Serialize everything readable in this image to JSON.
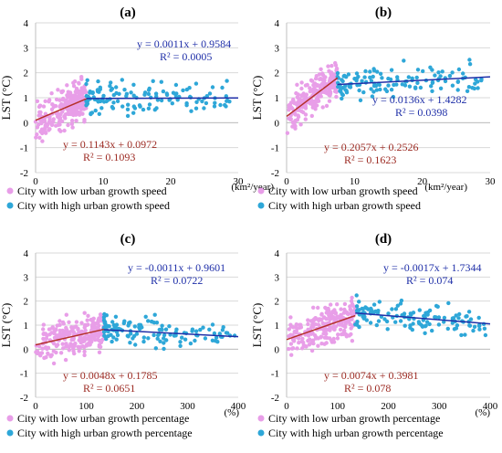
{
  "figure": {
    "panel_colors": {
      "low": "#e89ee8",
      "high": "#2ea7d8",
      "low_line": "#b5302a",
      "high_line": "#1f2fa8",
      "eq_low_text": "#9c2a22",
      "eq_high_text": "#1f2fa8"
    }
  },
  "chart_data": [
    {
      "id": "a",
      "type": "scatter",
      "title": "(a)",
      "ylabel": "LST (°C)",
      "xlabel": "",
      "x_unit": "(km²/year)",
      "xlim": [
        0,
        30
      ],
      "ylim": [
        -2,
        4
      ],
      "xticks": [
        "0",
        "10",
        "20",
        "30"
      ],
      "yticks": [
        "-2",
        "-1",
        "0",
        "1",
        "2",
        "3",
        "4"
      ],
      "series": [
        {
          "name": "City with low urban growth speed",
          "group": "low",
          "x_range": [
            0,
            7.5
          ],
          "y_range": [
            -1.0,
            2.0
          ],
          "n": 230,
          "trend": [
            0.1143,
            0.0972
          ]
        },
        {
          "name": "City with high urban growth speed",
          "group": "high",
          "x_range": [
            7.5,
            29
          ],
          "y_range": [
            -0.6,
            2.0
          ],
          "n": 130,
          "trend": [
            0.0011,
            0.9584
          ]
        }
      ],
      "equations": {
        "high": {
          "eq": "y = 0.0011x + 0.9584",
          "r2": "R² = 0.0005"
        },
        "low": {
          "eq": "y = 0.1143x + 0.0972",
          "r2": "R² = 0.1093"
        }
      }
    },
    {
      "id": "b",
      "type": "scatter",
      "title": "(b)",
      "ylabel": "LST (°C)",
      "xlabel": "",
      "x_unit": "(km²/year)",
      "xlim": [
        0,
        30
      ],
      "ylim": [
        -2,
        4
      ],
      "xticks": [
        "0",
        "10",
        "20",
        "30"
      ],
      "yticks": [
        "-2",
        "-1",
        "0",
        "1",
        "2",
        "3",
        "4"
      ],
      "series": [
        {
          "name": "City with low urban growth speed",
          "group": "low",
          "x_range": [
            0,
            7.5
          ],
          "y_range": [
            -1.5,
            3.0
          ],
          "n": 230,
          "trend": [
            0.2057,
            0.2526
          ]
        },
        {
          "name": "City with high urban growth speed",
          "group": "high",
          "x_range": [
            7.5,
            29
          ],
          "y_range": [
            -0.2,
            2.7
          ],
          "n": 130,
          "trend": [
            0.0136,
            1.4282
          ]
        }
      ],
      "equations": {
        "high": {
          "eq": "y = 0.0136x + 1.4282",
          "r2": "R² = 0.0398"
        },
        "low": {
          "eq": "y = 0.2057x + 0.2526",
          "r2": "R² = 0.1623"
        }
      }
    },
    {
      "id": "c",
      "type": "scatter",
      "title": "(c)",
      "ylabel": "LST (°C)",
      "xlabel": "",
      "x_unit": "(%)",
      "xlim": [
        0,
        400
      ],
      "ylim": [
        -2,
        4
      ],
      "xticks": [
        "0",
        "100",
        "200",
        "300",
        "400"
      ],
      "yticks": [
        "-2",
        "-1",
        "0",
        "1",
        "2",
        "3",
        "4"
      ],
      "series": [
        {
          "name": "City with low urban growth percentage",
          "group": "low",
          "x_range": [
            0,
            135
          ],
          "y_range": [
            -1.2,
            2.0
          ],
          "n": 230,
          "trend": [
            0.0048,
            0.1785
          ]
        },
        {
          "name": "City with high urban growth percentage",
          "group": "high",
          "x_range": [
            135,
            395
          ],
          "y_range": [
            -0.5,
            2.0
          ],
          "n": 130,
          "trend": [
            -0.0011,
            0.9601
          ]
        }
      ],
      "equations": {
        "high": {
          "eq": "y = -0.0011x + 0.9601",
          "r2": "R² = 0.0722"
        },
        "low": {
          "eq": "y = 0.0048x + 0.1785",
          "r2": "R² = 0.0651"
        }
      }
    },
    {
      "id": "d",
      "type": "scatter",
      "title": "(d)",
      "ylabel": "LST (°C)",
      "xlabel": "",
      "x_unit": "(%)",
      "xlim": [
        0,
        400
      ],
      "ylim": [
        -2,
        4
      ],
      "xticks": [
        "0",
        "100",
        "200",
        "300",
        "400"
      ],
      "yticks": [
        "-2",
        "-1",
        "0",
        "1",
        "2",
        "3",
        "4"
      ],
      "series": [
        {
          "name": "City with low urban growth percentage",
          "group": "low",
          "x_range": [
            0,
            135
          ],
          "y_range": [
            -1.5,
            2.7
          ],
          "n": 230,
          "trend": [
            0.0074,
            0.3981
          ]
        },
        {
          "name": "City with high urban growth percentage",
          "group": "high",
          "x_range": [
            135,
            395
          ],
          "y_range": [
            -0.3,
            3.0
          ],
          "n": 130,
          "trend": [
            -0.0017,
            1.7344
          ]
        }
      ],
      "equations": {
        "high": {
          "eq": "y = -0.0017x + 1.7344",
          "r2": "R² = 0.074"
        },
        "low": {
          "eq": "y = 0.0074x + 0.3981",
          "r2": "R² = 0.078"
        }
      }
    }
  ]
}
